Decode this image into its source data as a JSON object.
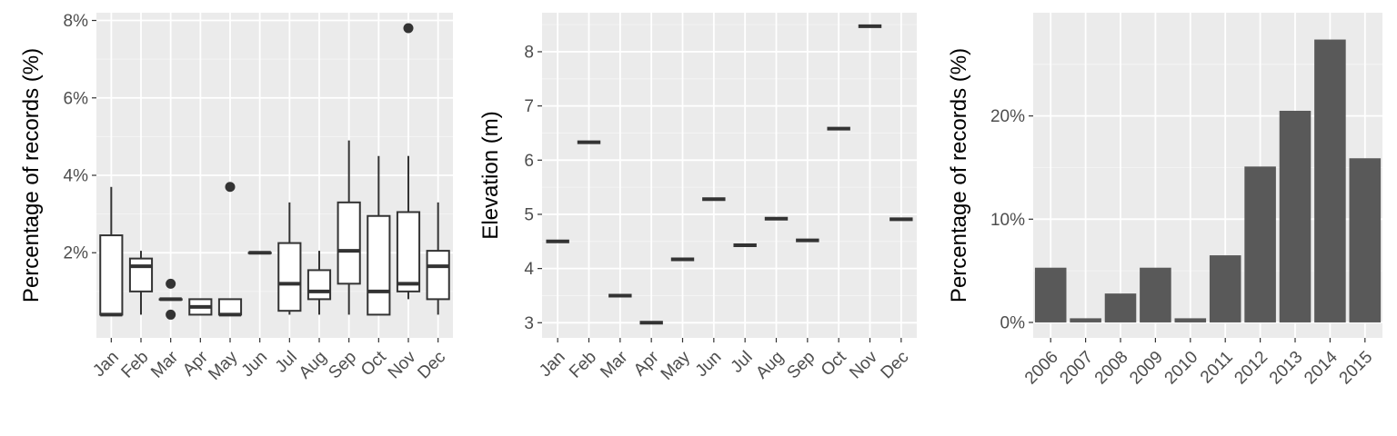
{
  "colors": {
    "panel_bg": "#ebebeb",
    "grid_major": "#ffffff",
    "bar_fill": "#595959",
    "ink": "#333333",
    "tick_text": "#4d4d4d"
  },
  "chart_data": [
    {
      "type": "boxplot",
      "title": "",
      "xlabel": "",
      "ylabel": "Percentage of records (%)",
      "ylim": [
        -0.2,
        8.2
      ],
      "y_ticks": [
        2,
        4,
        6,
        8
      ],
      "y_tick_labels": [
        "2%",
        "4%",
        "6%",
        "8%"
      ],
      "categories": [
        "Jan",
        "Feb",
        "Mar",
        "Apr",
        "May",
        "Jun",
        "Jul",
        "Aug",
        "Sep",
        "Oct",
        "Nov",
        "Dec"
      ],
      "boxes": [
        {
          "min": 0.4,
          "q1": 0.4,
          "median": 0.4,
          "q3": 2.45,
          "max": 3.7,
          "outliers": []
        },
        {
          "min": 0.4,
          "q1": 1.0,
          "median": 1.65,
          "q3": 1.85,
          "max": 2.05,
          "outliers": []
        },
        {
          "min": 0.8,
          "q1": 0.8,
          "median": 0.8,
          "q3": 0.8,
          "max": 0.8,
          "outliers": [
            1.2,
            0.4
          ]
        },
        {
          "min": 0.4,
          "q1": 0.4,
          "median": 0.6,
          "q3": 0.8,
          "max": 0.8,
          "outliers": []
        },
        {
          "min": 0.4,
          "q1": 0.4,
          "median": 0.4,
          "q3": 0.8,
          "max": 0.8,
          "outliers": [
            3.7
          ]
        },
        {
          "min": 2.0,
          "q1": 2.0,
          "median": 2.0,
          "q3": 2.0,
          "max": 2.0,
          "outliers": []
        },
        {
          "min": 0.4,
          "q1": 0.5,
          "median": 1.2,
          "q3": 2.25,
          "max": 3.3,
          "outliers": []
        },
        {
          "min": 0.4,
          "q1": 0.8,
          "median": 1.0,
          "q3": 1.55,
          "max": 2.05,
          "outliers": []
        },
        {
          "min": 0.4,
          "q1": 1.2,
          "median": 2.05,
          "q3": 3.3,
          "max": 4.9,
          "outliers": []
        },
        {
          "min": 0.4,
          "q1": 0.4,
          "median": 1.0,
          "q3": 2.95,
          "max": 4.5,
          "outliers": []
        },
        {
          "min": 0.8,
          "q1": 1.0,
          "median": 1.2,
          "q3": 3.05,
          "max": 4.5,
          "outliers": [
            7.8
          ]
        },
        {
          "min": 0.4,
          "q1": 0.8,
          "median": 1.65,
          "q3": 2.05,
          "max": 3.3,
          "outliers": []
        }
      ]
    },
    {
      "type": "boxplot",
      "title": "",
      "xlabel": "",
      "ylabel": "Elevation (m)",
      "ylim": [
        2.72,
        8.72
      ],
      "y_ticks": [
        3,
        4,
        5,
        6,
        7,
        8
      ],
      "y_tick_labels": [
        "3",
        "4",
        "5",
        "6",
        "7",
        "8"
      ],
      "categories": [
        "Jan",
        "Feb",
        "Mar",
        "Apr",
        "May",
        "Jun",
        "Jul",
        "Aug",
        "Sep",
        "Oct",
        "Nov",
        "Dec"
      ],
      "medians": [
        4.5,
        6.33,
        3.5,
        3.0,
        4.17,
        5.28,
        4.43,
        4.92,
        4.52,
        6.58,
        8.47,
        4.91
      ]
    },
    {
      "type": "bar",
      "title": "",
      "xlabel": "",
      "ylabel": "Percentage of records (%)",
      "ylim": [
        -1.5,
        30
      ],
      "y_ticks": [
        0,
        10,
        20
      ],
      "y_tick_labels": [
        "0%",
        "10%",
        "20%"
      ],
      "categories": [
        "2006",
        "2007",
        "2008",
        "2009",
        "2010",
        "2011",
        "2012",
        "2013",
        "2014",
        "2015"
      ],
      "values": [
        5.3,
        0.4,
        2.8,
        5.3,
        0.4,
        6.5,
        15.1,
        20.5,
        27.4,
        15.9
      ]
    }
  ]
}
